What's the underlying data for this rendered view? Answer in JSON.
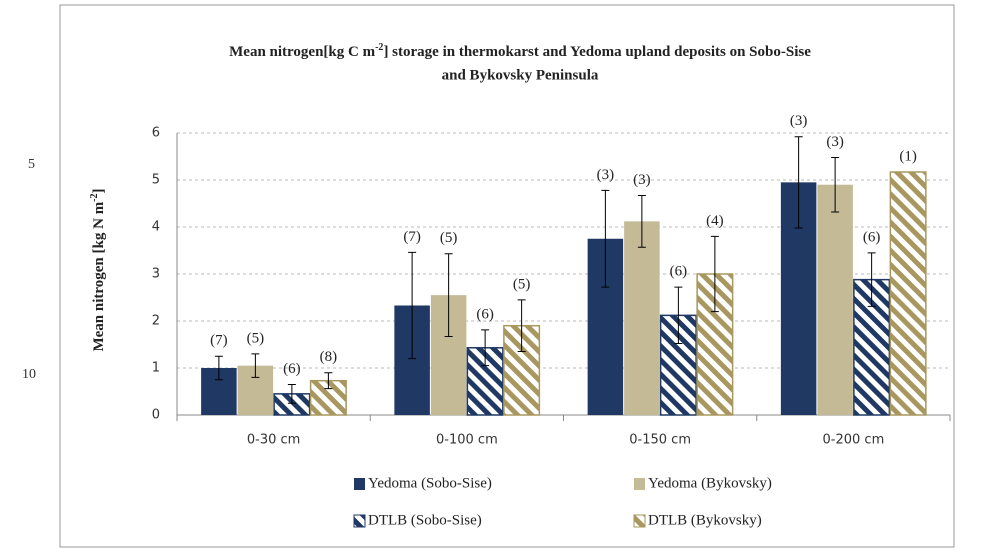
{
  "line_numbers": [
    "5",
    "10"
  ],
  "chart_data": {
    "type": "bar",
    "title": [
      "Mean nitrogen[kg C m",
      "-2",
      "] storage in thermokarst and Yedoma upland deposits on Sobo-Sise",
      "and Bykovsky Peninsula"
    ],
    "y_label": [
      "Mean nitrogen  [kg N m",
      "-2",
      "]"
    ],
    "categories": [
      "0-30 cm",
      "0-100 cm",
      "0-150 cm",
      "0-200 cm"
    ],
    "series": [
      {
        "name": "Yedoma (Sobo-Sise)",
        "color": "#1f3864",
        "hatch": false,
        "values": [
          1.0,
          2.33,
          3.75,
          4.95
        ],
        "errors": [
          0.25,
          1.13,
          1.03,
          0.97
        ],
        "n_labels": [
          "(7)",
          "(7)",
          "(3)",
          "(3)"
        ]
      },
      {
        "name": "Yedoma (Bykovsky)",
        "color": "#c4ba96",
        "hatch": false,
        "values": [
          1.05,
          2.55,
          4.12,
          4.9
        ],
        "errors": [
          0.25,
          0.88,
          0.55,
          0.58
        ],
        "n_labels": [
          "(5)",
          "(5)",
          "(3)",
          "(3)"
        ]
      },
      {
        "name": "DTLB (Sobo-Sise)",
        "color": "#1f3864",
        "hatch": true,
        "values": [
          0.45,
          1.43,
          2.12,
          2.88
        ],
        "errors": [
          0.2,
          0.38,
          0.6,
          0.57
        ],
        "n_labels": [
          "(6)",
          "(6)",
          "(6)",
          "(6)"
        ]
      },
      {
        "name": "DTLB (Bykovsky)",
        "color": "#a8975f",
        "hatch": true,
        "values": [
          0.73,
          1.9,
          3.0,
          5.17
        ],
        "errors": [
          0.17,
          0.55,
          0.8,
          null
        ],
        "n_labels": [
          "(8)",
          "(5)",
          "(4)",
          "(1)"
        ]
      }
    ],
    "ylim": [
      0,
      6
    ],
    "yticks": [
      0,
      1,
      2,
      3,
      4,
      5,
      6
    ],
    "grid": true
  }
}
